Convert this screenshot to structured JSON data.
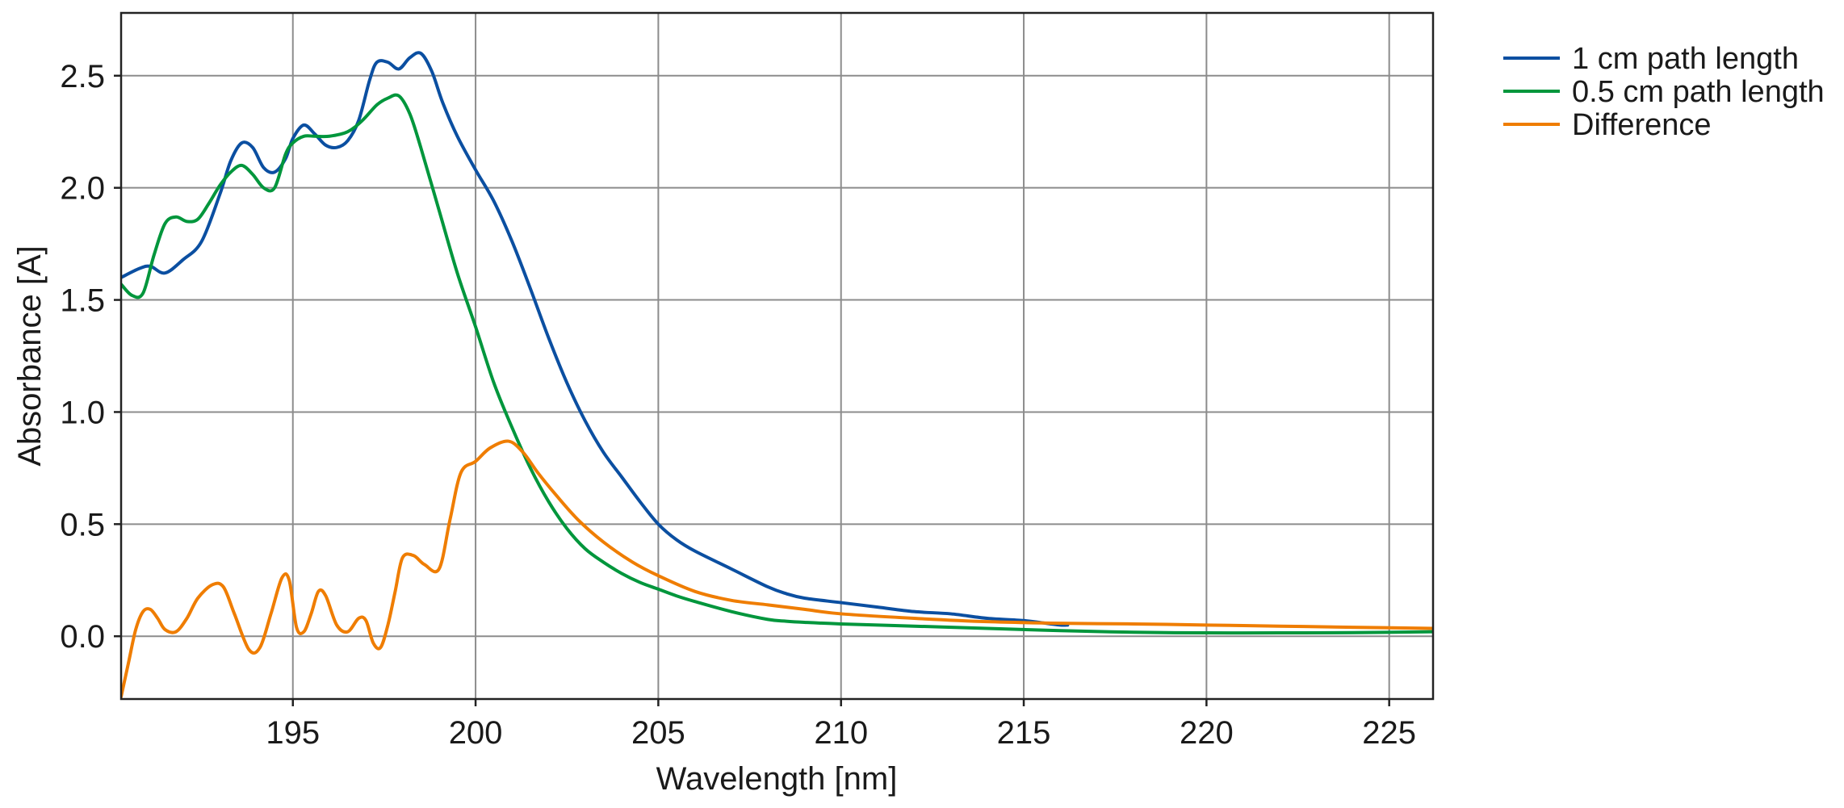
{
  "chart_data": {
    "type": "line",
    "title": "",
    "xlabel": "Wavelength [nm]",
    "ylabel": "Absorbance [A]",
    "xlim": [
      190.3,
      226.2
    ],
    "ylim": [
      -0.28,
      2.78
    ],
    "xticks": [
      195,
      200,
      205,
      210,
      215,
      220,
      225
    ],
    "xtick_labels": [
      "195",
      "200",
      "205",
      "210",
      "215",
      "220",
      "225"
    ],
    "yticks": [
      0.0,
      0.5,
      1.0,
      1.5,
      2.0,
      2.5
    ],
    "ytick_labels": [
      "0.0",
      "0.5",
      "1.0",
      "1.5",
      "2.0",
      "2.5"
    ],
    "grid": true,
    "legend_position": "outside-top-right",
    "series": [
      {
        "name": "1 cm path length",
        "color": "#0b4fa1",
        "x": [
          190.3,
          190.8,
          191.1,
          191.5,
          192.0,
          192.5,
          193.0,
          193.3,
          193.6,
          193.9,
          194.2,
          194.5,
          194.8,
          195.0,
          195.3,
          195.6,
          195.9,
          196.2,
          196.5,
          196.8,
          197.1,
          197.3,
          197.6,
          197.9,
          198.2,
          198.5,
          198.8,
          199.1,
          199.5,
          200.0,
          200.5,
          201.0,
          201.5,
          202.0,
          202.5,
          203.0,
          203.5,
          204.0,
          204.5,
          205.0,
          205.5,
          206.0,
          207.0,
          208.0,
          208.5,
          209.0,
          210.0,
          211.0,
          212.0,
          213.0,
          214.0,
          215.0,
          215.5,
          216.0,
          216.2
        ],
        "y": [
          1.6,
          1.64,
          1.65,
          1.62,
          1.68,
          1.76,
          1.97,
          2.12,
          2.2,
          2.18,
          2.09,
          2.07,
          2.13,
          2.22,
          2.28,
          2.24,
          2.19,
          2.18,
          2.21,
          2.3,
          2.48,
          2.56,
          2.56,
          2.53,
          2.58,
          2.6,
          2.52,
          2.38,
          2.23,
          2.08,
          1.94,
          1.76,
          1.55,
          1.33,
          1.13,
          0.96,
          0.82,
          0.71,
          0.6,
          0.5,
          0.43,
          0.38,
          0.3,
          0.22,
          0.19,
          0.17,
          0.15,
          0.13,
          0.11,
          0.1,
          0.08,
          0.07,
          0.06,
          0.05,
          0.05
        ]
      },
      {
        "name": "0.5 cm path length",
        "color": "#00963c",
        "x": [
          190.3,
          190.6,
          190.9,
          191.2,
          191.5,
          191.8,
          192.1,
          192.4,
          192.7,
          193.0,
          193.3,
          193.6,
          193.9,
          194.2,
          194.5,
          194.8,
          195.0,
          195.3,
          195.6,
          196.0,
          196.5,
          196.9,
          197.3,
          197.6,
          197.9,
          198.2,
          198.5,
          199.0,
          199.5,
          200.0,
          200.5,
          201.0,
          201.5,
          202.0,
          202.5,
          203.0,
          203.5,
          204.0,
          204.5,
          205.0,
          205.5,
          206.0,
          207.0,
          208.0,
          208.5,
          209.0,
          210.0,
          212.0,
          214.0,
          216.0,
          218.0,
          220.0,
          222.0,
          224.0,
          226.2
        ],
        "y": [
          1.57,
          1.52,
          1.53,
          1.7,
          1.84,
          1.87,
          1.85,
          1.86,
          1.93,
          2.01,
          2.07,
          2.1,
          2.06,
          2.0,
          2.0,
          2.15,
          2.2,
          2.23,
          2.23,
          2.23,
          2.25,
          2.3,
          2.37,
          2.4,
          2.41,
          2.33,
          2.18,
          1.9,
          1.62,
          1.38,
          1.13,
          0.93,
          0.75,
          0.6,
          0.48,
          0.39,
          0.33,
          0.28,
          0.24,
          0.21,
          0.18,
          0.155,
          0.11,
          0.075,
          0.067,
          0.062,
          0.055,
          0.045,
          0.035,
          0.025,
          0.018,
          0.015,
          0.015,
          0.016,
          0.02
        ]
      },
      {
        "name": "Difference",
        "color": "#ef7d00",
        "x": [
          190.3,
          190.5,
          190.7,
          190.9,
          191.1,
          191.3,
          191.5,
          191.8,
          192.1,
          192.4,
          192.8,
          193.1,
          193.4,
          193.8,
          194.1,
          194.4,
          194.7,
          194.9,
          195.1,
          195.3,
          195.5,
          195.7,
          195.9,
          196.2,
          196.5,
          196.8,
          197.0,
          197.2,
          197.4,
          197.6,
          197.8,
          198.0,
          198.3,
          198.6,
          199.0,
          199.3,
          199.6,
          200.0,
          200.4,
          200.9,
          201.3,
          201.7,
          202.2,
          202.8,
          203.5,
          204.3,
          205.0,
          206.0,
          207.0,
          208.0,
          209.0,
          210.0,
          212.0,
          214.0,
          216.0,
          218.0,
          220.0,
          222.0,
          224.0,
          226.2
        ],
        "y": [
          -0.27,
          -0.12,
          0.03,
          0.11,
          0.12,
          0.08,
          0.03,
          0.02,
          0.08,
          0.17,
          0.23,
          0.22,
          0.1,
          -0.06,
          -0.05,
          0.1,
          0.26,
          0.25,
          0.04,
          0.02,
          0.1,
          0.2,
          0.18,
          0.05,
          0.02,
          0.08,
          0.07,
          -0.03,
          -0.05,
          0.05,
          0.2,
          0.35,
          0.36,
          0.32,
          0.3,
          0.52,
          0.73,
          0.78,
          0.84,
          0.87,
          0.82,
          0.73,
          0.63,
          0.52,
          0.42,
          0.33,
          0.27,
          0.2,
          0.16,
          0.14,
          0.12,
          0.1,
          0.08,
          0.065,
          0.058,
          0.055,
          0.05,
          0.045,
          0.04,
          0.035
        ]
      }
    ]
  }
}
